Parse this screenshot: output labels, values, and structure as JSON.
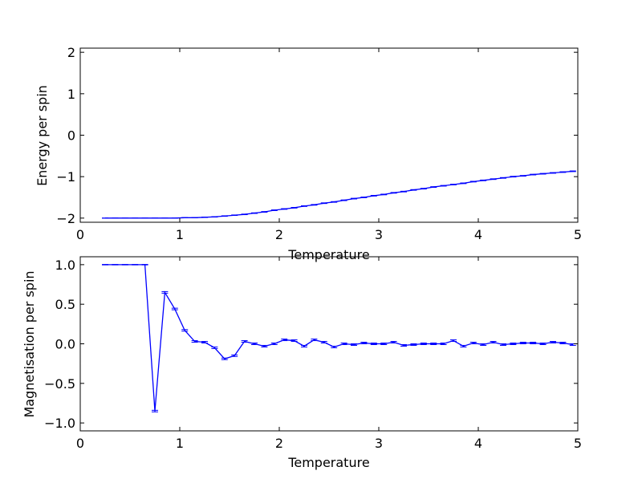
{
  "chart_data": [
    {
      "type": "line",
      "xlabel": "Temperature",
      "ylabel": "Energy per spin",
      "xlim": [
        0,
        5
      ],
      "ylim": [
        -2.1,
        2.1
      ],
      "xticks": [
        0,
        1,
        2,
        3,
        4,
        5
      ],
      "yticks": [
        -2,
        -1,
        0,
        1,
        2
      ],
      "xtick_labels": [
        "0",
        "1",
        "2",
        "3",
        "4",
        "5"
      ],
      "ytick_labels": [
        "−2",
        "−1",
        "0",
        "1",
        "2"
      ],
      "grid": false,
      "series": [
        {
          "color": "#0000ff",
          "x": [
            0.25,
            0.35,
            0.45,
            0.55,
            0.65,
            0.75,
            0.85,
            0.95,
            1.05,
            1.15,
            1.25,
            1.35,
            1.45,
            1.55,
            1.65,
            1.75,
            1.85,
            1.95,
            2.05,
            2.15,
            2.25,
            2.35,
            2.45,
            2.55,
            2.65,
            2.75,
            2.85,
            2.95,
            3.05,
            3.15,
            3.25,
            3.35,
            3.45,
            3.55,
            3.65,
            3.75,
            3.85,
            3.95,
            4.05,
            4.15,
            4.25,
            4.35,
            4.45,
            4.55,
            4.65,
            4.75,
            4.85,
            4.95
          ],
          "y": [
            -2.0,
            -2.0,
            -2.0,
            -2.0,
            -2.0,
            -2.0,
            -2.0,
            -2.0,
            -1.99,
            -1.99,
            -1.98,
            -1.97,
            -1.95,
            -1.93,
            -1.91,
            -1.88,
            -1.85,
            -1.81,
            -1.78,
            -1.75,
            -1.71,
            -1.68,
            -1.64,
            -1.61,
            -1.57,
            -1.53,
            -1.5,
            -1.46,
            -1.43,
            -1.39,
            -1.36,
            -1.32,
            -1.29,
            -1.25,
            -1.22,
            -1.19,
            -1.16,
            -1.12,
            -1.09,
            -1.06,
            -1.03,
            -1.0,
            -0.98,
            -0.95,
            -0.93,
            -0.91,
            -0.89,
            -0.87
          ],
          "err": [
            0.003,
            0.003,
            0.003,
            0.003,
            0.003,
            0.003,
            0.003,
            0.003,
            0.004,
            0.004,
            0.005,
            0.005,
            0.006,
            0.006,
            0.007,
            0.007,
            0.008,
            0.008,
            0.008,
            0.008,
            0.008,
            0.008,
            0.008,
            0.008,
            0.008,
            0.008,
            0.008,
            0.008,
            0.008,
            0.008,
            0.008,
            0.008,
            0.008,
            0.008,
            0.008,
            0.008,
            0.008,
            0.008,
            0.008,
            0.008,
            0.008,
            0.008,
            0.008,
            0.008,
            0.008,
            0.008,
            0.008,
            0.008
          ]
        }
      ]
    },
    {
      "type": "line",
      "xlabel": "Temperature",
      "ylabel": "Magnetisation per spin",
      "xlim": [
        0,
        5
      ],
      "ylim": [
        -1.1,
        1.1
      ],
      "xticks": [
        0,
        1,
        2,
        3,
        4,
        5
      ],
      "yticks": [
        -1.0,
        -0.5,
        0.0,
        0.5,
        1.0
      ],
      "xtick_labels": [
        "0",
        "1",
        "2",
        "3",
        "4",
        "5"
      ],
      "ytick_labels": [
        "−1.0",
        "−0.5",
        "0.0",
        "0.5",
        "1.0"
      ],
      "grid": false,
      "series": [
        {
          "color": "#0000ff",
          "x": [
            0.25,
            0.35,
            0.45,
            0.55,
            0.65,
            0.75,
            0.85,
            0.95,
            1.05,
            1.15,
            1.25,
            1.35,
            1.45,
            1.55,
            1.65,
            1.75,
            1.85,
            1.95,
            2.05,
            2.15,
            2.25,
            2.35,
            2.45,
            2.55,
            2.65,
            2.75,
            2.85,
            2.95,
            3.05,
            3.15,
            3.25,
            3.35,
            3.45,
            3.55,
            3.65,
            3.75,
            3.85,
            3.95,
            4.05,
            4.15,
            4.25,
            4.35,
            4.45,
            4.55,
            4.65,
            4.75,
            4.85,
            4.95
          ],
          "y": [
            1.0,
            1.0,
            1.0,
            1.0,
            1.0,
            -0.85,
            0.65,
            0.44,
            0.17,
            0.03,
            0.02,
            -0.05,
            -0.19,
            -0.15,
            0.03,
            0.0,
            -0.03,
            0.0,
            0.05,
            0.04,
            -0.03,
            0.05,
            0.02,
            -0.04,
            0.0,
            -0.01,
            0.01,
            0.0,
            0.0,
            0.02,
            -0.02,
            -0.01,
            0.0,
            0.0,
            0.0,
            0.04,
            -0.03,
            0.01,
            -0.01,
            0.02,
            -0.01,
            0.0,
            0.01,
            0.01,
            0.0,
            0.02,
            0.01,
            -0.01
          ],
          "err": [
            0.003,
            0.003,
            0.003,
            0.003,
            0.003,
            0.01,
            0.01,
            0.01,
            0.01,
            0.01,
            0.01,
            0.01,
            0.01,
            0.01,
            0.01,
            0.01,
            0.01,
            0.01,
            0.01,
            0.01,
            0.01,
            0.01,
            0.01,
            0.01,
            0.01,
            0.01,
            0.01,
            0.01,
            0.01,
            0.01,
            0.01,
            0.01,
            0.01,
            0.01,
            0.01,
            0.01,
            0.01,
            0.01,
            0.01,
            0.01,
            0.01,
            0.01,
            0.01,
            0.01,
            0.01,
            0.01,
            0.01,
            0.01
          ]
        }
      ]
    }
  ]
}
